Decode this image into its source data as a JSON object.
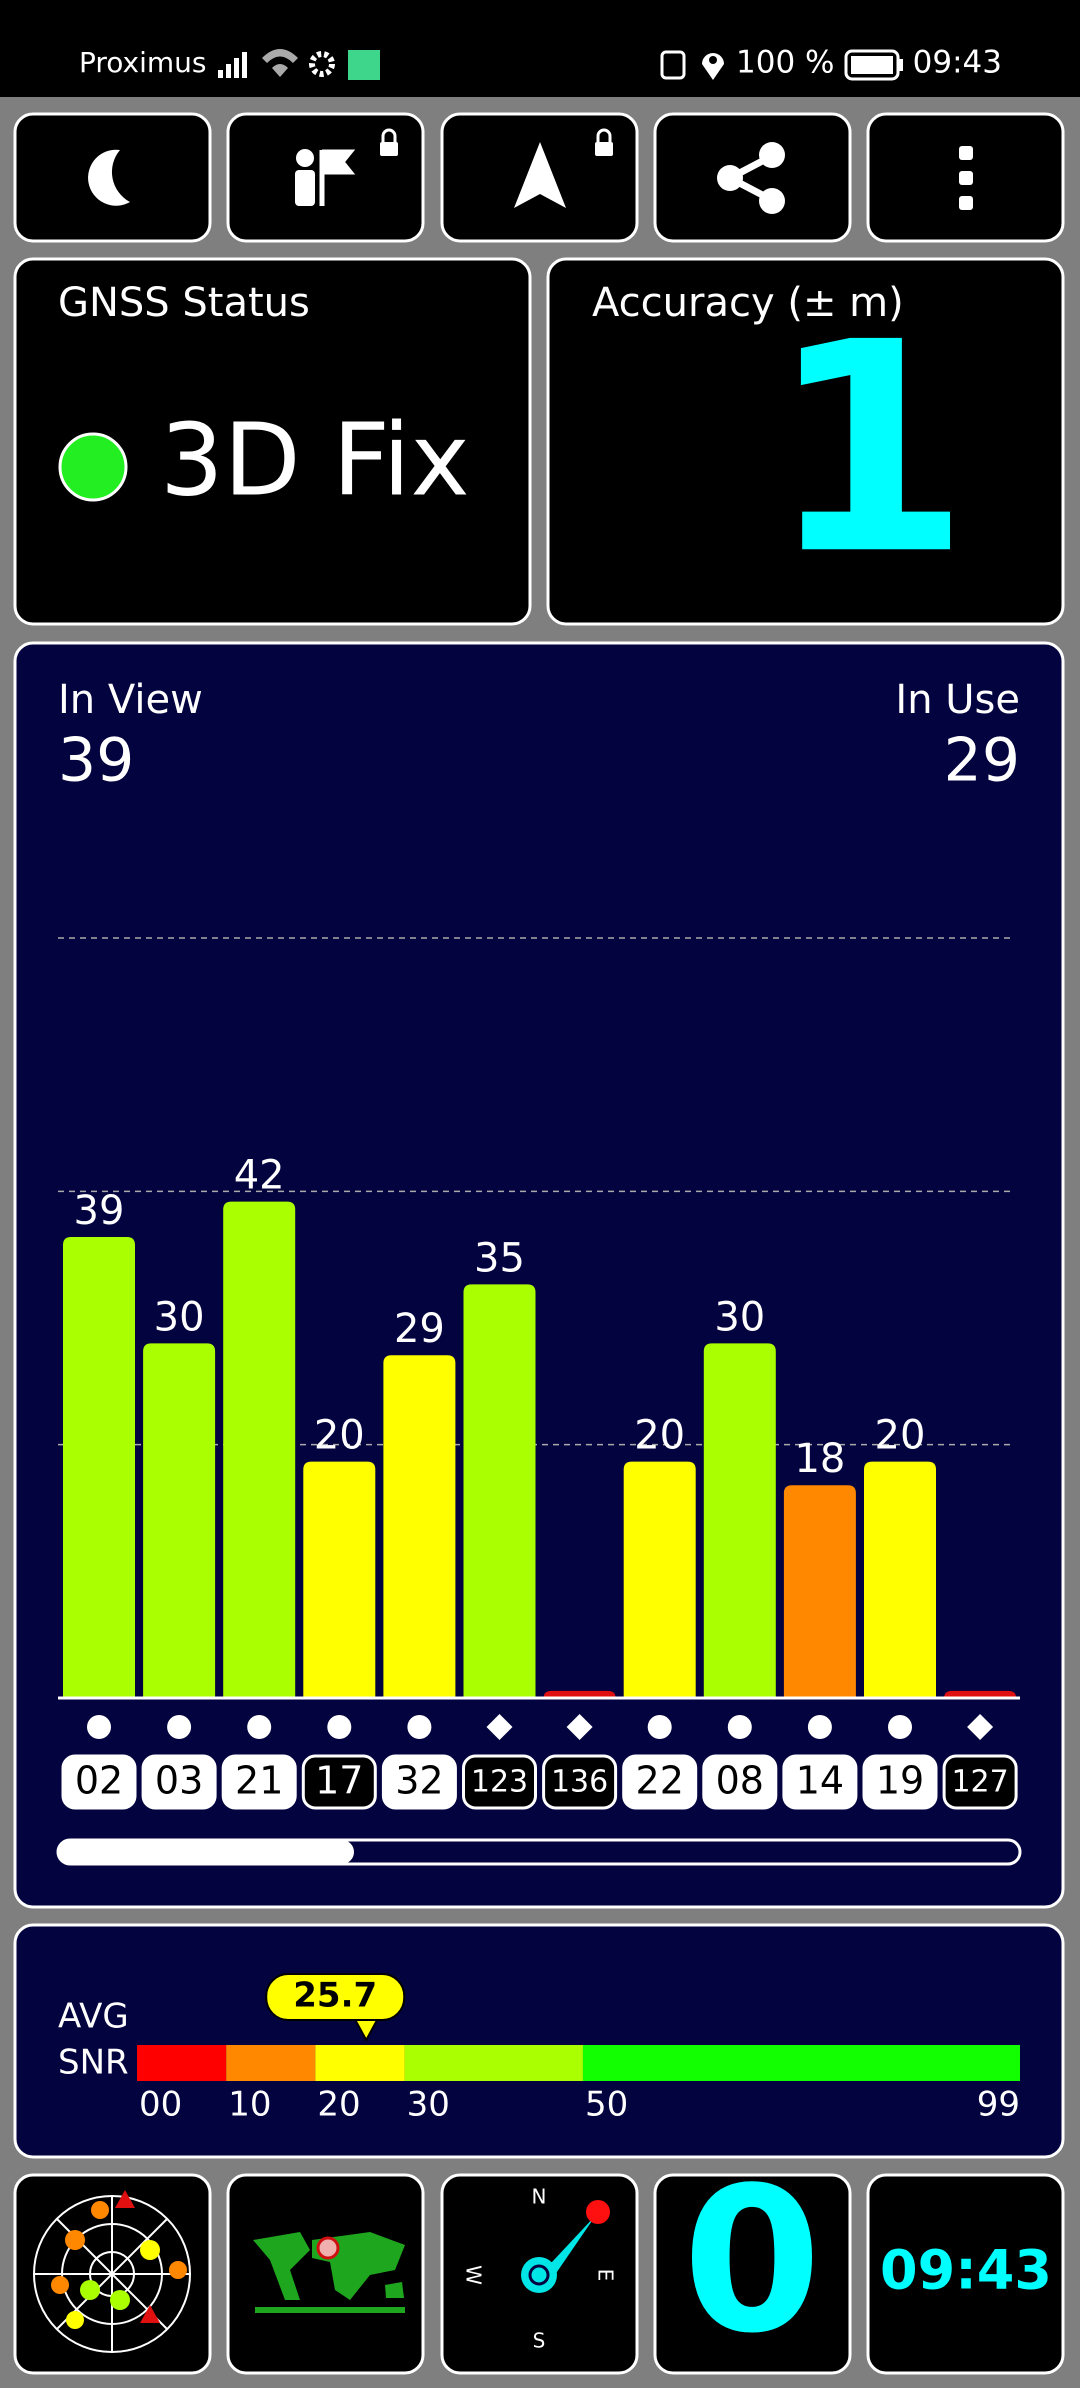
{
  "status_bar": {
    "carrier": "Proximus",
    "battery": "100 %",
    "time": "09:43"
  },
  "gnss_status": {
    "title": "GNSS Status",
    "fix": "3D Fix"
  },
  "accuracy": {
    "title": "Accuracy (± m)",
    "value": 1
  },
  "satellites": {
    "in_view_label": "In View",
    "in_view": 39,
    "in_use_label": "In Use",
    "in_use": 29
  },
  "chart_data": {
    "type": "bar",
    "categories": [
      "02",
      "03",
      "21",
      "17",
      "32",
      "123",
      "136",
      "22",
      "08",
      "14",
      "19",
      "127"
    ],
    "values": [
      39,
      30,
      42,
      20,
      29,
      35,
      0.6,
      20,
      30,
      18,
      20,
      0.6
    ],
    "value_labels": [
      "39",
      "30",
      "42",
      "20",
      "29",
      "35",
      null,
      "20",
      "30",
      "18",
      "20",
      null
    ],
    "colors": [
      "#aaff00",
      "#aaff00",
      "#aaff00",
      "#ffff00",
      "#ffff00",
      "#aaff00",
      "#e01010",
      "#ffff00",
      "#aaff00",
      "#ff8800",
      "#ffff00",
      "#e01010"
    ],
    "markers": [
      "circle",
      "circle",
      "circle",
      "circle",
      "circle",
      "diamond",
      "diamond",
      "circle",
      "circle",
      "circle",
      "circle",
      "diamond"
    ],
    "in_use": [
      true,
      true,
      true,
      false,
      true,
      false,
      false,
      true,
      true,
      true,
      true,
      false
    ],
    "ylim": [
      0,
      64.3
    ],
    "grid": true
  },
  "snr": {
    "label_top": "AVG",
    "label_bottom": "SNR",
    "average": 25.7,
    "xlim": [
      0,
      99
    ],
    "xticks": [
      {
        "value": 0,
        "label": "00"
      },
      10,
      20,
      30,
      50,
      99
    ],
    "colors": [
      "#ff0000",
      "#ff8800",
      "#ffff00",
      "#aaff00",
      "#11ff00"
    ]
  },
  "bottom_bar": {
    "compass": [
      "N",
      "E",
      "S",
      "W"
    ],
    "count": 0,
    "clock": "09:43"
  }
}
